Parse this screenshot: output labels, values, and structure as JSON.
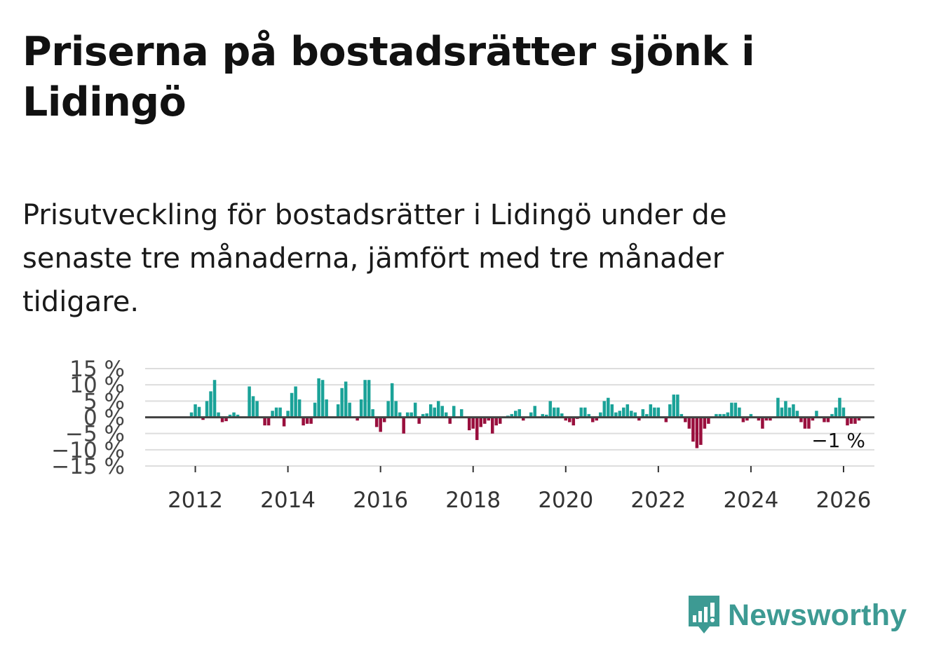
{
  "title": "Priserna på bostadsrätter sjönk i Lidingö",
  "subtitle": "Prisutveckling för bostadsrätter i Lidingö under de senaste tre månaderna, jämfört med tre månader tidigare.",
  "brand": {
    "name": "Newsworthy",
    "icon": "newsworthy-logo-icon",
    "color": "#3d9a93"
  },
  "colors": {
    "positive": "#1aa298",
    "negative": "#990f3d",
    "zero_line": "#444444",
    "grid": "#dddddd"
  },
  "chart_data": {
    "type": "bar",
    "ylim": [
      -15,
      15
    ],
    "y_ticks": [
      {
        "value": 15,
        "label": "15 %"
      },
      {
        "value": 10,
        "label": "10 %"
      },
      {
        "value": 5,
        "label": "5 %"
      },
      {
        "value": 0,
        "label": "0 %"
      },
      {
        "value": -5,
        "label": "−5 %"
      },
      {
        "value": -10,
        "label": "−10 %"
      },
      {
        "value": -15,
        "label": "−15 %"
      }
    ],
    "x_ticks": [
      {
        "value": "2012-01",
        "label": "2012"
      },
      {
        "value": "2014-01",
        "label": "2014"
      },
      {
        "value": "2016-01",
        "label": "2016"
      },
      {
        "value": "2018-01",
        "label": "2018"
      },
      {
        "value": "2020-01",
        "label": "2020"
      },
      {
        "value": "2022-01",
        "label": "2022"
      },
      {
        "value": "2024-01",
        "label": "2024"
      },
      {
        "value": "2026-01",
        "label": "2026"
      }
    ],
    "x_range": [
      "2010-12",
      "2026-09"
    ],
    "last_value_label": "−1 %",
    "start_month": "2011-12",
    "values": [
      1.5,
      4.0,
      3.2,
      -0.8,
      5.0,
      8.0,
      11.5,
      1.5,
      -1.5,
      -1.2,
      0.8,
      1.5,
      0.8,
      0.0,
      0.0,
      9.5,
      6.5,
      5.0,
      0.0,
      -2.5,
      -2.5,
      2.0,
      3.0,
      3.0,
      -2.8,
      2.0,
      7.5,
      9.5,
      5.5,
      -2.5,
      -2.0,
      -2.0,
      4.5,
      12.0,
      11.5,
      5.5,
      0.0,
      0.0,
      4.0,
      9.0,
      11.0,
      4.5,
      0.0,
      -1.0,
      5.5,
      11.5,
      11.5,
      2.5,
      -3.0,
      -4.5,
      -1.5,
      5.0,
      10.5,
      5.0,
      1.5,
      -5.0,
      1.5,
      1.5,
      4.5,
      -2.0,
      1.0,
      1.2,
      4.0,
      3.0,
      5.0,
      3.5,
      1.5,
      -2.0,
      3.5,
      0.0,
      2.5,
      0.0,
      -4.0,
      -3.5,
      -7.0,
      -3.0,
      -2.0,
      -1.0,
      -5.0,
      -2.5,
      -2.0,
      0.0,
      0.5,
      1.0,
      2.0,
      2.5,
      -1.0,
      0.0,
      1.5,
      3.5,
      0.0,
      1.0,
      0.8,
      5.0,
      3.0,
      3.0,
      1.2,
      -1.0,
      -1.5,
      -2.5,
      -0.5,
      3.0,
      3.0,
      1.0,
      -1.5,
      -1.0,
      1.5,
      5.0,
      6.0,
      4.0,
      1.5,
      2.0,
      3.0,
      4.0,
      2.0,
      1.5,
      -1.0,
      2.5,
      1.0,
      4.0,
      3.0,
      3.0,
      0.0,
      -1.5,
      4.0,
      7.0,
      7.0,
      1.0,
      -1.5,
      -3.5,
      -7.5,
      -9.5,
      -8.5,
      -3.5,
      -2.0,
      0.0,
      1.0,
      1.0,
      1.0,
      1.5,
      4.5,
      4.5,
      3.0,
      -1.5,
      -1.0,
      1.0,
      0.0,
      -1.0,
      -3.5,
      -1.0,
      -1.0,
      0.0,
      6.0,
      3.0,
      5.0,
      3.0,
      4.0,
      2.0,
      -1.5,
      -3.5,
      -3.5,
      -1.0,
      2.0,
      0.0,
      -1.5,
      -1.5,
      1.0,
      3.0,
      6.0,
      3.0,
      -2.5,
      -2.0,
      -2.0,
      -1.0
    ]
  }
}
